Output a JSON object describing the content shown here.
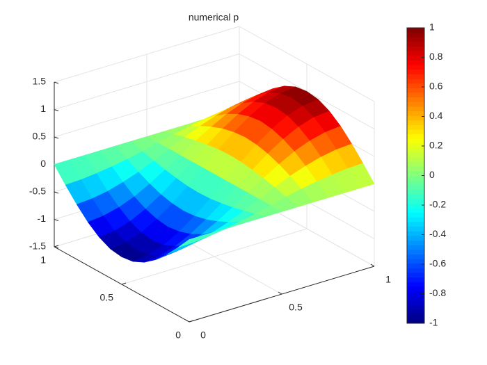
{
  "chart_data": {
    "type": "surface",
    "title": "numerical p",
    "x": [
      0,
      0.0833,
      0.1667,
      0.25,
      0.3333,
      0.4167,
      0.5,
      0.5833,
      0.6667,
      0.75,
      0.8333,
      0.9167,
      1
    ],
    "y": [
      0,
      0.0833,
      0.1667,
      0.25,
      0.3333,
      0.4167,
      0.5,
      0.5833,
      0.6667,
      0.75,
      0.8333,
      0.9167,
      1
    ],
    "z": [
      [
        0,
        0,
        0,
        0,
        0,
        0,
        0,
        0,
        0,
        0,
        0,
        0,
        0
      ],
      [
        -0.26,
        -0.25,
        -0.22,
        -0.18,
        -0.13,
        -0.07,
        0,
        0.07,
        0.13,
        0.18,
        0.22,
        0.25,
        0.26
      ],
      [
        -0.5,
        -0.48,
        -0.43,
        -0.35,
        -0.25,
        -0.13,
        0,
        0.13,
        0.25,
        0.35,
        0.43,
        0.48,
        0.5
      ],
      [
        -0.71,
        -0.68,
        -0.61,
        -0.5,
        -0.35,
        -0.18,
        0,
        0.18,
        0.35,
        0.5,
        0.61,
        0.68,
        0.71
      ],
      [
        -0.87,
        -0.84,
        -0.75,
        -0.61,
        -0.43,
        -0.22,
        0,
        0.22,
        0.43,
        0.61,
        0.75,
        0.84,
        0.87
      ],
      [
        -0.97,
        -0.93,
        -0.84,
        -0.68,
        -0.48,
        -0.25,
        0,
        0.25,
        0.48,
        0.68,
        0.84,
        0.93,
        0.97
      ],
      [
        -1,
        -0.97,
        -0.87,
        -0.71,
        -0.5,
        -0.26,
        0,
        0.26,
        0.5,
        0.71,
        0.87,
        0.97,
        1
      ],
      [
        -0.97,
        -0.93,
        -0.84,
        -0.68,
        -0.48,
        -0.25,
        0,
        0.25,
        0.48,
        0.68,
        0.84,
        0.93,
        0.97
      ],
      [
        -0.87,
        -0.84,
        -0.75,
        -0.61,
        -0.43,
        -0.22,
        0,
        0.22,
        0.43,
        0.61,
        0.75,
        0.84,
        0.87
      ],
      [
        -0.71,
        -0.68,
        -0.61,
        -0.5,
        -0.35,
        -0.18,
        0,
        0.18,
        0.35,
        0.5,
        0.61,
        0.68,
        0.71
      ],
      [
        -0.5,
        -0.48,
        -0.43,
        -0.35,
        -0.25,
        -0.13,
        0,
        0.13,
        0.25,
        0.35,
        0.43,
        0.48,
        0.5
      ],
      [
        -0.26,
        -0.25,
        -0.22,
        -0.18,
        -0.13,
        -0.07,
        0,
        0.07,
        0.13,
        0.18,
        0.22,
        0.25,
        0.26
      ],
      [
        0,
        0,
        0,
        0,
        0,
        0,
        0,
        0,
        0,
        0,
        0,
        0,
        0
      ]
    ],
    "xlim": [
      0,
      1
    ],
    "ylim": [
      0,
      1
    ],
    "zlim": [
      -1.5,
      1.5
    ],
    "xticks": [
      0,
      0.5,
      1
    ],
    "yticks": [
      0,
      0.5,
      1
    ],
    "zticks": [
      -1.5,
      -1,
      -0.5,
      0,
      0.5,
      1,
      1.5
    ],
    "colormap": "jet",
    "clim": [
      -1,
      1
    ],
    "colorbar_ticks": [
      -1,
      -0.8,
      -0.6,
      -0.4,
      -0.2,
      0,
      0.2,
      0.4,
      0.6,
      0.8,
      1
    ],
    "grid": true
  }
}
